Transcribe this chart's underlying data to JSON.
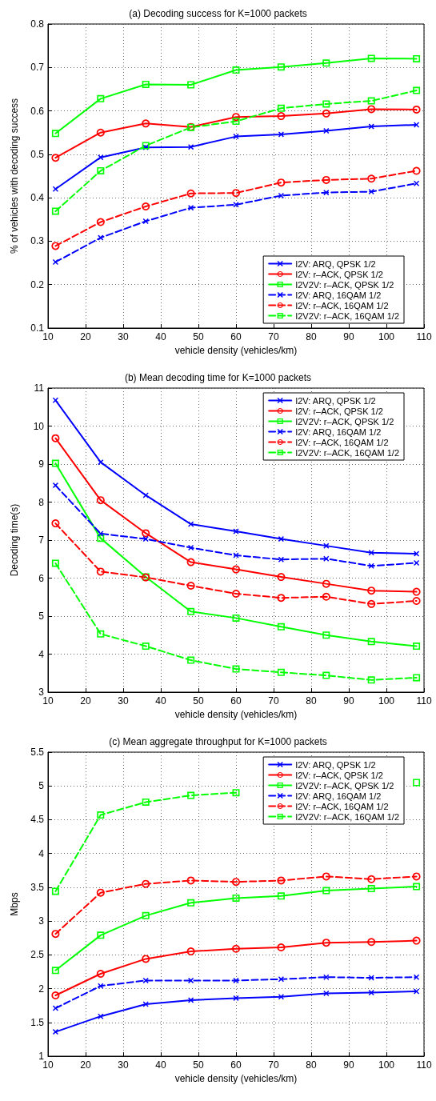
{
  "chart_data": [
    {
      "type": "line",
      "title": "(a) Decoding success for K=1000 packets",
      "xlabel": "vehicle density (vehicles/km)",
      "ylabel": "% of vehicles with decoding success",
      "x": [
        12,
        24,
        36,
        48,
        60,
        72,
        84,
        96,
        108
      ],
      "xlim": [
        10,
        110
      ],
      "xticks": [
        10,
        20,
        30,
        40,
        50,
        60,
        70,
        80,
        90,
        100,
        110
      ],
      "ylim": [
        0.1,
        0.8
      ],
      "yticks": [
        0.1,
        0.2,
        0.3,
        0.4,
        0.5,
        0.6,
        0.7,
        0.8
      ],
      "grid": true,
      "legend": "bottom right",
      "series": [
        {
          "name": "I2V: ARQ, QPSK 1/2",
          "color": "#0000ff",
          "marker": "cross",
          "line_style": "solid",
          "values": [
            0.42,
            0.493,
            0.516,
            0.517,
            0.541,
            0.546,
            0.554,
            0.564,
            0.568
          ]
        },
        {
          "name": "I2V: r–ACK, QPSK 1/2",
          "color": "#ff0000",
          "marker": "circle",
          "line_style": "solid",
          "values": [
            0.492,
            0.55,
            0.571,
            0.563,
            0.586,
            0.588,
            0.594,
            0.604,
            0.603
          ]
        },
        {
          "name": "I2V2V: r–ACK, QPSK 1/2",
          "color": "#00ff00",
          "marker": "square",
          "line_style": "solid",
          "values": [
            0.548,
            0.628,
            0.661,
            0.66,
            0.694,
            0.701,
            0.71,
            0.721,
            0.72
          ]
        },
        {
          "name": "I2V: ARQ, 16QAM 1/2",
          "color": "#0000ff",
          "marker": "cross",
          "line_style": "dashed",
          "values": [
            0.252,
            0.308,
            0.346,
            0.377,
            0.384,
            0.405,
            0.412,
            0.414,
            0.433
          ]
        },
        {
          "name": "I2V: r–ACK, 16QAM 1/2",
          "color": "#ff0000",
          "marker": "circle",
          "line_style": "dashed",
          "values": [
            0.289,
            0.344,
            0.38,
            0.41,
            0.411,
            0.435,
            0.441,
            0.444,
            0.462
          ]
        },
        {
          "name": "I2V2V: r–ACK, 16QAM 1/2",
          "color": "#00ff00",
          "marker": "square",
          "line_style": "dashed",
          "values": [
            0.369,
            0.462,
            0.52,
            0.562,
            0.576,
            0.606,
            0.616,
            0.623,
            0.647
          ]
        }
      ]
    },
    {
      "type": "line",
      "title": "(b) Mean decoding time for K=1000 packets",
      "xlabel": "vehicle density (vehicles/km)",
      "ylabel": "Decoding time(s)",
      "x": [
        12,
        24,
        36,
        48,
        60,
        72,
        84,
        96,
        108
      ],
      "xlim": [
        10,
        110
      ],
      "xticks": [
        10,
        20,
        30,
        40,
        50,
        60,
        70,
        80,
        90,
        100,
        110
      ],
      "ylim": [
        3,
        11
      ],
      "yticks": [
        3,
        4,
        5,
        6,
        7,
        8,
        9,
        10,
        11
      ],
      "grid": true,
      "legend": "top right",
      "series": [
        {
          "name": "I2V: ARQ, QPSK 1/2",
          "color": "#0000ff",
          "marker": "cross",
          "line_style": "solid",
          "values": [
            10.68,
            9.05,
            8.18,
            7.42,
            7.23,
            7.03,
            6.85,
            6.67,
            6.64
          ]
        },
        {
          "name": "I2V: r–ACK, QPSK 1/2",
          "color": "#ff0000",
          "marker": "circle",
          "line_style": "solid",
          "values": [
            9.68,
            8.05,
            7.18,
            6.42,
            6.23,
            6.03,
            5.85,
            5.67,
            5.64
          ]
        },
        {
          "name": "I2V2V: r–ACK, QPSK 1/2",
          "color": "#00ff00",
          "marker": "square",
          "line_style": "solid",
          "values": [
            9.02,
            7.05,
            6.03,
            5.12,
            4.95,
            4.72,
            4.5,
            4.33,
            4.21
          ]
        },
        {
          "name": "I2V: ARQ, 16QAM 1/2",
          "color": "#0000ff",
          "marker": "cross",
          "line_style": "dashed",
          "values": [
            8.44,
            7.17,
            7.03,
            6.8,
            6.6,
            6.49,
            6.51,
            6.32,
            6.4
          ]
        },
        {
          "name": "I2V: r–ACK, 16QAM 1/2",
          "color": "#ff0000",
          "marker": "circle",
          "line_style": "dashed",
          "values": [
            7.44,
            6.17,
            6.02,
            5.8,
            5.59,
            5.48,
            5.51,
            5.32,
            5.4
          ]
        },
        {
          "name": "I2V2V: r–ACK, 16QAM 1/2",
          "color": "#00ff00",
          "marker": "square",
          "line_style": "dashed",
          "values": [
            6.39,
            4.53,
            4.21,
            3.84,
            3.61,
            3.52,
            3.44,
            3.32,
            3.38
          ]
        }
      ]
    },
    {
      "type": "line",
      "title": "(c) Mean aggregate throughput for K=1000 packets",
      "xlabel": "vehicle density (vehicles/km)",
      "ylabel": "Mbps",
      "x": [
        12,
        24,
        36,
        48,
        60,
        72,
        84,
        96,
        108
      ],
      "xlim": [
        10,
        110
      ],
      "xticks": [
        10,
        20,
        30,
        40,
        50,
        60,
        70,
        80,
        90,
        100,
        110
      ],
      "ylim": [
        1,
        5.5
      ],
      "yticks": [
        1,
        1.5,
        2,
        2.5,
        3,
        3.5,
        4,
        4.5,
        5,
        5.5
      ],
      "grid": true,
      "legend": "top right",
      "series": [
        {
          "name": "I2V: ARQ, QPSK 1/2",
          "color": "#0000ff",
          "marker": "cross",
          "line_style": "solid",
          "values": [
            1.36,
            1.59,
            1.77,
            1.83,
            1.86,
            1.88,
            1.93,
            1.94,
            1.96
          ]
        },
        {
          "name": "I2V: r–ACK, QPSK 1/2",
          "color": "#ff0000",
          "marker": "circle",
          "line_style": "solid",
          "values": [
            1.9,
            2.22,
            2.44,
            2.55,
            2.59,
            2.61,
            2.68,
            2.69,
            2.71
          ]
        },
        {
          "name": "I2V2V: r–ACK, QPSK 1/2",
          "color": "#00ff00",
          "marker": "square",
          "line_style": "solid",
          "values": [
            2.27,
            2.79,
            3.08,
            3.27,
            3.34,
            3.37,
            3.45,
            3.48,
            3.51
          ]
        },
        {
          "name": "I2V: ARQ, 16QAM 1/2",
          "color": "#0000ff",
          "marker": "cross",
          "line_style": "dashed",
          "values": [
            1.71,
            2.04,
            2.12,
            2.12,
            2.12,
            2.14,
            2.17,
            2.16,
            2.17
          ]
        },
        {
          "name": "I2V: r–ACK, 16QAM 1/2",
          "color": "#ff0000",
          "marker": "circle",
          "line_style": "dashed",
          "values": [
            2.81,
            3.42,
            3.55,
            3.6,
            3.58,
            3.6,
            3.66,
            3.62,
            3.66
          ]
        },
        {
          "name": "I2V2V: r–ACK, 16QAM 1/2",
          "color": "#00ff00",
          "marker": "square",
          "line_style": "dashed",
          "values": [
            3.44,
            4.57,
            4.76,
            4.86,
            4.9,
            null,
            null,
            null,
            5.05
          ]
        }
      ]
    }
  ]
}
